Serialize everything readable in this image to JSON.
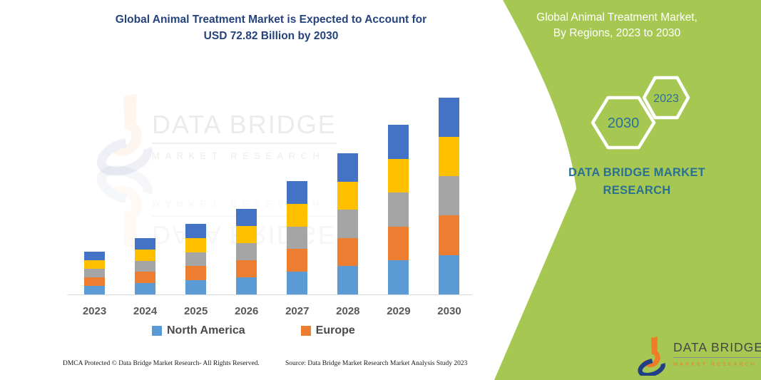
{
  "title": {
    "line1": "Global Animal Treatment Market is Expected to Account for",
    "line2": "USD 72.82 Billion by 2030"
  },
  "chart_data": {
    "type": "bar",
    "stacked": true,
    "title": "Global Animal Treatment Market is Expected to Account for USD 72.82 Billion by 2030",
    "unit": "USD Billion",
    "categories": [
      "2023",
      "2024",
      "2025",
      "2026",
      "2027",
      "2028",
      "2029",
      "2030"
    ],
    "series": [
      {
        "name": "North America",
        "color": "#5B9BD5",
        "values": [
          3.16,
          4.16,
          5.22,
          6.32,
          8.36,
          10.42,
          12.52,
          14.56
        ]
      },
      {
        "name": "Europe",
        "color": "#ED7D31",
        "values": [
          3.16,
          4.16,
          5.22,
          6.32,
          8.36,
          10.42,
          12.52,
          14.56
        ]
      },
      {
        "name": "unlabeled-region-gray",
        "color": "#A5A5A5",
        "values": [
          3.16,
          4.16,
          5.22,
          6.32,
          8.36,
          10.42,
          12.52,
          14.56
        ]
      },
      {
        "name": "unlabeled-region-yellow",
        "color": "#FFC000",
        "values": [
          3.16,
          4.16,
          5.22,
          6.32,
          8.36,
          10.42,
          12.52,
          14.56
        ]
      },
      {
        "name": "unlabeled-region-darkblue",
        "color": "#4472C4",
        "values": [
          3.16,
          4.16,
          5.22,
          6.32,
          8.36,
          10.42,
          12.52,
          14.56
        ]
      }
    ],
    "totals": [
      15.8,
      20.8,
      26.1,
      31.6,
      41.8,
      52.1,
      62.6,
      72.82
    ],
    "ylim": [
      0,
      76
    ],
    "y_axis_visible": false,
    "gridlines": false,
    "legend_position": "bottom",
    "legend": [
      "North America",
      "Europe"
    ]
  },
  "legend": [
    {
      "label": "North America",
      "color": "#5B9BD5"
    },
    {
      "label": "Europe",
      "color": "#ED7D31"
    }
  ],
  "watermark": {
    "name": "DATA BRIDGE",
    "sub": "MARKET RESEARCH"
  },
  "panel": {
    "header_line1": "Global Animal Treatment Market,",
    "header_line2": "By Regions, 2023 to 2030",
    "hexagon_large": "2030",
    "hexagon_small": "2023",
    "brand_line1": "DATA BRIDGE MARKET",
    "brand_line2": "RESEARCH",
    "colors": {
      "green": "#a6c853",
      "teal": "#2c7091"
    }
  },
  "logo": {
    "name": "DATA BRIDGE",
    "sub": "MARKET RESEARCH",
    "colors": {
      "orange": "#f07c26",
      "blue": "#203f85"
    }
  },
  "footer": {
    "left": "DMCA Protected © Data Bridge Market Research-  All Rights Reserved.",
    "right": "Source: Data Bridge Market Research  Market Analysis Study 2023"
  }
}
